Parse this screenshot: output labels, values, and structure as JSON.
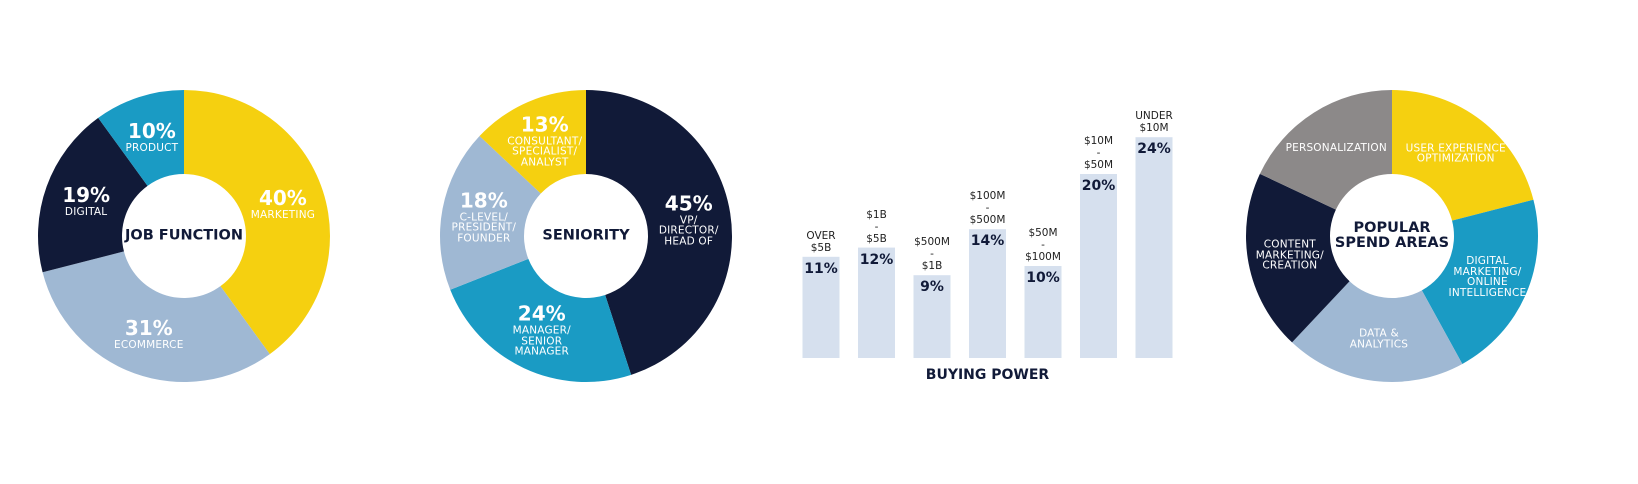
{
  "chart_data": [
    {
      "type": "donut",
      "title": "JOB FUNCTION",
      "categories": [
        "MARKETING",
        "ECOMMERCE",
        "DIGITAL",
        "PRODUCT"
      ],
      "values": [
        40,
        31,
        19,
        10
      ],
      "value_labels": [
        "40%",
        "31%",
        "19%",
        "10%"
      ],
      "colors": [
        "#f5d010",
        "#9fb8d3",
        "#111a38",
        "#1a9bc4"
      ]
    },
    {
      "type": "donut",
      "title": "SENIORITY",
      "categories": [
        "VP/\nDIRECTOR/\nHEAD OF",
        "MANAGER/\nSENIOR\nMANAGER",
        "C-LEVEL/\nPRESIDENT/\nFOUNDER",
        "CONSULTANT/\nSPECIALIST/\nANALYST"
      ],
      "values": [
        45,
        24,
        18,
        13
      ],
      "value_labels": [
        "45%",
        "24%",
        "18%",
        "13%"
      ],
      "colors": [
        "#111a38",
        "#1a9bc4",
        "#9fb8d3",
        "#f5d010"
      ]
    },
    {
      "type": "bar",
      "title": "BUYING POWER",
      "categories": [
        "OVER\n$5B",
        "$1B\n-\n$5B",
        "$500M\n-\n$1B",
        "$100M\n-\n$500M",
        "$50M\n-\n$100M",
        "$10M\n-\n$50M",
        "UNDER\n$10M"
      ],
      "values": [
        11,
        12,
        9,
        14,
        10,
        20,
        24
      ],
      "value_labels": [
        "11%",
        "12%",
        "9%",
        "14%",
        "10%",
        "20%",
        "24%"
      ],
      "color": "#d6e0ee"
    },
    {
      "type": "donut",
      "title": "POPULAR\nSPEND AREAS",
      "categories": [
        "USER EXPERIENCE\nOPTIMIZATION",
        "DIGITAL\nMARKETING/\nONLINE\nINTELLIGENCE",
        "DATA &\nANALYTICS",
        "CONTENT\nMARKETING/\nCREATION",
        "PERSONALIZATION"
      ],
      "values": [
        21,
        21,
        20,
        20,
        18
      ],
      "colors": [
        "#f5d010",
        "#1a9bc4",
        "#9fb8d3",
        "#111a38",
        "#8c8989"
      ]
    }
  ]
}
